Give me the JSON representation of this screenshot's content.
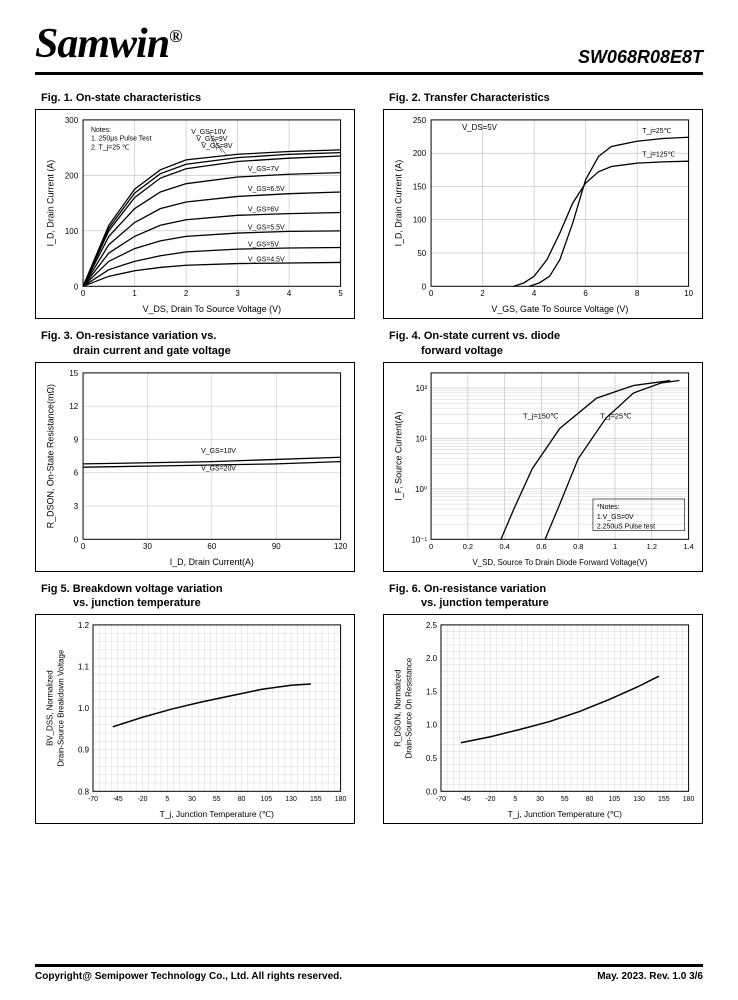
{
  "header": {
    "logo": "Samwin",
    "reg": "®",
    "part": "SW068R08E8T"
  },
  "footer": {
    "copyright": "Copyright@ Semipower Technology Co., Ltd. All rights reserved.",
    "rev": "May. 2023. Rev. 1.0    3/6"
  },
  "fig1": {
    "title": "Fig. 1. On-state characteristics",
    "xlabel": "V_DS, Drain To Source Voltage (V)",
    "ylabel": "I_D, Drain Current (A)",
    "xlim": [
      0,
      5
    ],
    "ylim": [
      0,
      300
    ],
    "xticks": [
      0,
      1,
      2,
      3,
      4,
      5
    ],
    "yticks": [
      0,
      100,
      200,
      300
    ],
    "notes": [
      "Notes:",
      "1. 250μs Pulse Test",
      "2. T_j=25 ℃"
    ],
    "curves": [
      {
        "label": "V_GS=10V",
        "labelpos": [
          2.1,
          275
        ],
        "data": [
          [
            0,
            0
          ],
          [
            0.5,
            110
          ],
          [
            1,
            175
          ],
          [
            1.5,
            210
          ],
          [
            2,
            228
          ],
          [
            3,
            238
          ],
          [
            4,
            243
          ],
          [
            5,
            246
          ]
        ]
      },
      {
        "label": "V_GS=9V",
        "labelpos": [
          2.2,
          262
        ],
        "data": [
          [
            0,
            0
          ],
          [
            0.5,
            105
          ],
          [
            1,
            168
          ],
          [
            1.5,
            203
          ],
          [
            2,
            220
          ],
          [
            3,
            232
          ],
          [
            4,
            238
          ],
          [
            5,
            241
          ]
        ]
      },
      {
        "label": "V_GS=8V",
        "labelpos": [
          2.3,
          249
        ],
        "data": [
          [
            0,
            0
          ],
          [
            0.5,
            100
          ],
          [
            1,
            160
          ],
          [
            1.5,
            195
          ],
          [
            2,
            212
          ],
          [
            3,
            225
          ],
          [
            4,
            231
          ],
          [
            5,
            235
          ]
        ]
      },
      {
        "label": "V_GS=7V",
        "labelpos": [
          3.2,
          208
        ],
        "data": [
          [
            0,
            0
          ],
          [
            0.5,
            90
          ],
          [
            1,
            140
          ],
          [
            1.5,
            170
          ],
          [
            2,
            185
          ],
          [
            3,
            197
          ],
          [
            4,
            202
          ],
          [
            5,
            205
          ]
        ]
      },
      {
        "label": "V_GS=6.5V",
        "labelpos": [
          3.2,
          172
        ],
        "data": [
          [
            0,
            0
          ],
          [
            0.5,
            75
          ],
          [
            1,
            115
          ],
          [
            1.5,
            140
          ],
          [
            2,
            152
          ],
          [
            3,
            162
          ],
          [
            4,
            167
          ],
          [
            5,
            170
          ]
        ]
      },
      {
        "label": "V_GS=6V",
        "labelpos": [
          3.2,
          135
        ],
        "data": [
          [
            0,
            0
          ],
          [
            0.5,
            60
          ],
          [
            1,
            90
          ],
          [
            1.5,
            110
          ],
          [
            2,
            120
          ],
          [
            3,
            128
          ],
          [
            4,
            131
          ],
          [
            5,
            133
          ]
        ]
      },
      {
        "label": "V_GS=5.5V",
        "labelpos": [
          3.2,
          102
        ],
        "data": [
          [
            0,
            0
          ],
          [
            0.5,
            45
          ],
          [
            1,
            68
          ],
          [
            1.5,
            82
          ],
          [
            2,
            90
          ],
          [
            3,
            96
          ],
          [
            4,
            99
          ],
          [
            5,
            100
          ]
        ]
      },
      {
        "label": "V_GS=5V",
        "labelpos": [
          3.2,
          72
        ],
        "data": [
          [
            0,
            0
          ],
          [
            0.5,
            30
          ],
          [
            1,
            45
          ],
          [
            1.5,
            55
          ],
          [
            2,
            62
          ],
          [
            3,
            67
          ],
          [
            4,
            69
          ],
          [
            5,
            70
          ]
        ]
      },
      {
        "label": "V_GS=4.5V",
        "labelpos": [
          3.2,
          45
        ],
        "data": [
          [
            0,
            0
          ],
          [
            0.5,
            18
          ],
          [
            1,
            28
          ],
          [
            1.5,
            34
          ],
          [
            2,
            38
          ],
          [
            3,
            41
          ],
          [
            4,
            42
          ],
          [
            5,
            43
          ]
        ]
      }
    ],
    "line_color": "#000000",
    "grid_color": "#b0b0b0"
  },
  "fig2": {
    "title": "Fig. 2. Transfer Characteristics",
    "xlabel": "V_GS, Gate To Source Voltage (V)",
    "ylabel": "I_D, Drain Current (A)",
    "xlim": [
      0,
      10
    ],
    "ylim": [
      0,
      250
    ],
    "xticks": [
      0,
      2,
      4,
      6,
      8,
      10
    ],
    "yticks": [
      0,
      50,
      100,
      150,
      200,
      250
    ],
    "note": "V_DS=5V",
    "curves": [
      {
        "label": "T_j=25℃",
        "labelpos": [
          8.2,
          230
        ],
        "data": [
          [
            3.8,
            0
          ],
          [
            4.2,
            5
          ],
          [
            4.6,
            15
          ],
          [
            5,
            40
          ],
          [
            5.5,
            95
          ],
          [
            6,
            160
          ],
          [
            6.5,
            195
          ],
          [
            7,
            210
          ],
          [
            8,
            218
          ],
          [
            9,
            222
          ],
          [
            10,
            224
          ]
        ]
      },
      {
        "label": "T_j=125℃",
        "labelpos": [
          8.2,
          195
        ],
        "data": [
          [
            3.2,
            0
          ],
          [
            3.6,
            5
          ],
          [
            4,
            15
          ],
          [
            4.5,
            40
          ],
          [
            5,
            80
          ],
          [
            5.5,
            125
          ],
          [
            6,
            155
          ],
          [
            6.5,
            172
          ],
          [
            7,
            180
          ],
          [
            8,
            185
          ],
          [
            9,
            187
          ],
          [
            10,
            188
          ]
        ]
      }
    ],
    "line_color": "#000000",
    "grid_color": "#b0b0b0"
  },
  "fig3": {
    "title1": "Fig. 3. On-resistance variation vs.",
    "title2": "drain current and gate voltage",
    "xlabel": "I_D, Drain Current(A)",
    "ylabel": "R_DSON, On-State Resistance(mΩ)",
    "xlim": [
      0,
      120
    ],
    "ylim": [
      0,
      15
    ],
    "xticks": [
      0,
      30,
      60,
      90,
      120
    ],
    "yticks": [
      0,
      3.0,
      6.0,
      9.0,
      12.0,
      15.0
    ],
    "curves": [
      {
        "label": "V_GS=10V",
        "labelpos": [
          55,
          7.8
        ],
        "data": [
          [
            0,
            6.8
          ],
          [
            30,
            6.9
          ],
          [
            60,
            7.0
          ],
          [
            90,
            7.2
          ],
          [
            120,
            7.4
          ]
        ]
      },
      {
        "label": "V_GS=20V",
        "labelpos": [
          55,
          6.2
        ],
        "data": [
          [
            0,
            6.5
          ],
          [
            30,
            6.6
          ],
          [
            60,
            6.7
          ],
          [
            90,
            6.8
          ],
          [
            120,
            7.0
          ]
        ]
      }
    ],
    "line_color": "#000000",
    "grid_color": "#c0c0c0"
  },
  "fig4": {
    "title1": "Fig. 4. On-state current vs. diode",
    "title2": "forward voltage",
    "xlabel": "V_SD, Source To Drain Diode Forward Voltage(V)",
    "ylabel": "I_F, Source Current(A)",
    "xlim": [
      0,
      1.4
    ],
    "ylim_log": [
      -1,
      2.3
    ],
    "xticks": [
      0,
      0.2,
      0.4,
      0.6,
      0.8,
      1.0,
      1.2,
      1.4
    ],
    "ytick_labels": [
      "10⁻¹",
      "10⁰",
      "10¹",
      "10²"
    ],
    "ytick_pos": [
      -1,
      0,
      1,
      2
    ],
    "notes": [
      "*Notes:",
      "1.V_GS=0V",
      "2.250uS Pulse test"
    ],
    "curves": [
      {
        "label": "T_j=150℃",
        "labelpos": [
          0.5,
          1.4
        ],
        "data": [
          [
            0.38,
            -1
          ],
          [
            0.45,
            -0.4
          ],
          [
            0.55,
            0.4
          ],
          [
            0.7,
            1.2
          ],
          [
            0.9,
            1.8
          ],
          [
            1.1,
            2.05
          ],
          [
            1.3,
            2.15
          ]
        ]
      },
      {
        "label": "T_j=25℃",
        "labelpos": [
          0.92,
          1.4
        ],
        "data": [
          [
            0.62,
            -1
          ],
          [
            0.7,
            -0.3
          ],
          [
            0.8,
            0.6
          ],
          [
            0.95,
            1.4
          ],
          [
            1.1,
            1.9
          ],
          [
            1.25,
            2.1
          ],
          [
            1.35,
            2.15
          ]
        ]
      }
    ],
    "line_color": "#000000",
    "grid_color": "#b0b0b0"
  },
  "fig5": {
    "title1": "Fig 5. Breakdown voltage variation",
    "title2": "vs. junction temperature",
    "xlabel": "T_j, Junction Temperature (℃)",
    "ylabel1": "BV_DSS, Normalized",
    "ylabel2": "Drain-Source Breakdown Voltage",
    "xlim": [
      -70,
      180
    ],
    "ylim": [
      0.8,
      1.2
    ],
    "xticks": [
      -70,
      -45,
      -20,
      5,
      30,
      55,
      80,
      105,
      130,
      155,
      180
    ],
    "yticks": [
      0.8,
      0.9,
      1.0,
      1.1,
      1.2
    ],
    "curve": [
      [
        -50,
        0.955
      ],
      [
        -20,
        0.978
      ],
      [
        10,
        0.998
      ],
      [
        40,
        1.015
      ],
      [
        70,
        1.03
      ],
      [
        100,
        1.045
      ],
      [
        130,
        1.055
      ],
      [
        150,
        1.058
      ]
    ],
    "line_color": "#000000",
    "grid_color": "#c0c0c0"
  },
  "fig6": {
    "title1": "Fig. 6. On-resistance variation",
    "title2": "vs. junction temperature",
    "xlabel": "T_j, Junction Temperature (℃)",
    "ylabel1": "R_DSON, Normalized",
    "ylabel2": "Drain-Source On Resistance",
    "xlim": [
      -70,
      180
    ],
    "ylim": [
      0,
      2.5
    ],
    "xticks": [
      -70,
      -45,
      -20,
      5,
      30,
      55,
      80,
      105,
      130,
      155,
      180
    ],
    "yticks": [
      0,
      0.5,
      1.0,
      1.5,
      2.0,
      2.5
    ],
    "curve": [
      [
        -50,
        0.73
      ],
      [
        -20,
        0.82
      ],
      [
        10,
        0.93
      ],
      [
        40,
        1.05
      ],
      [
        70,
        1.2
      ],
      [
        100,
        1.38
      ],
      [
        130,
        1.58
      ],
      [
        150,
        1.73
      ]
    ],
    "line_color": "#000000",
    "grid_color": "#c0c0c0"
  }
}
